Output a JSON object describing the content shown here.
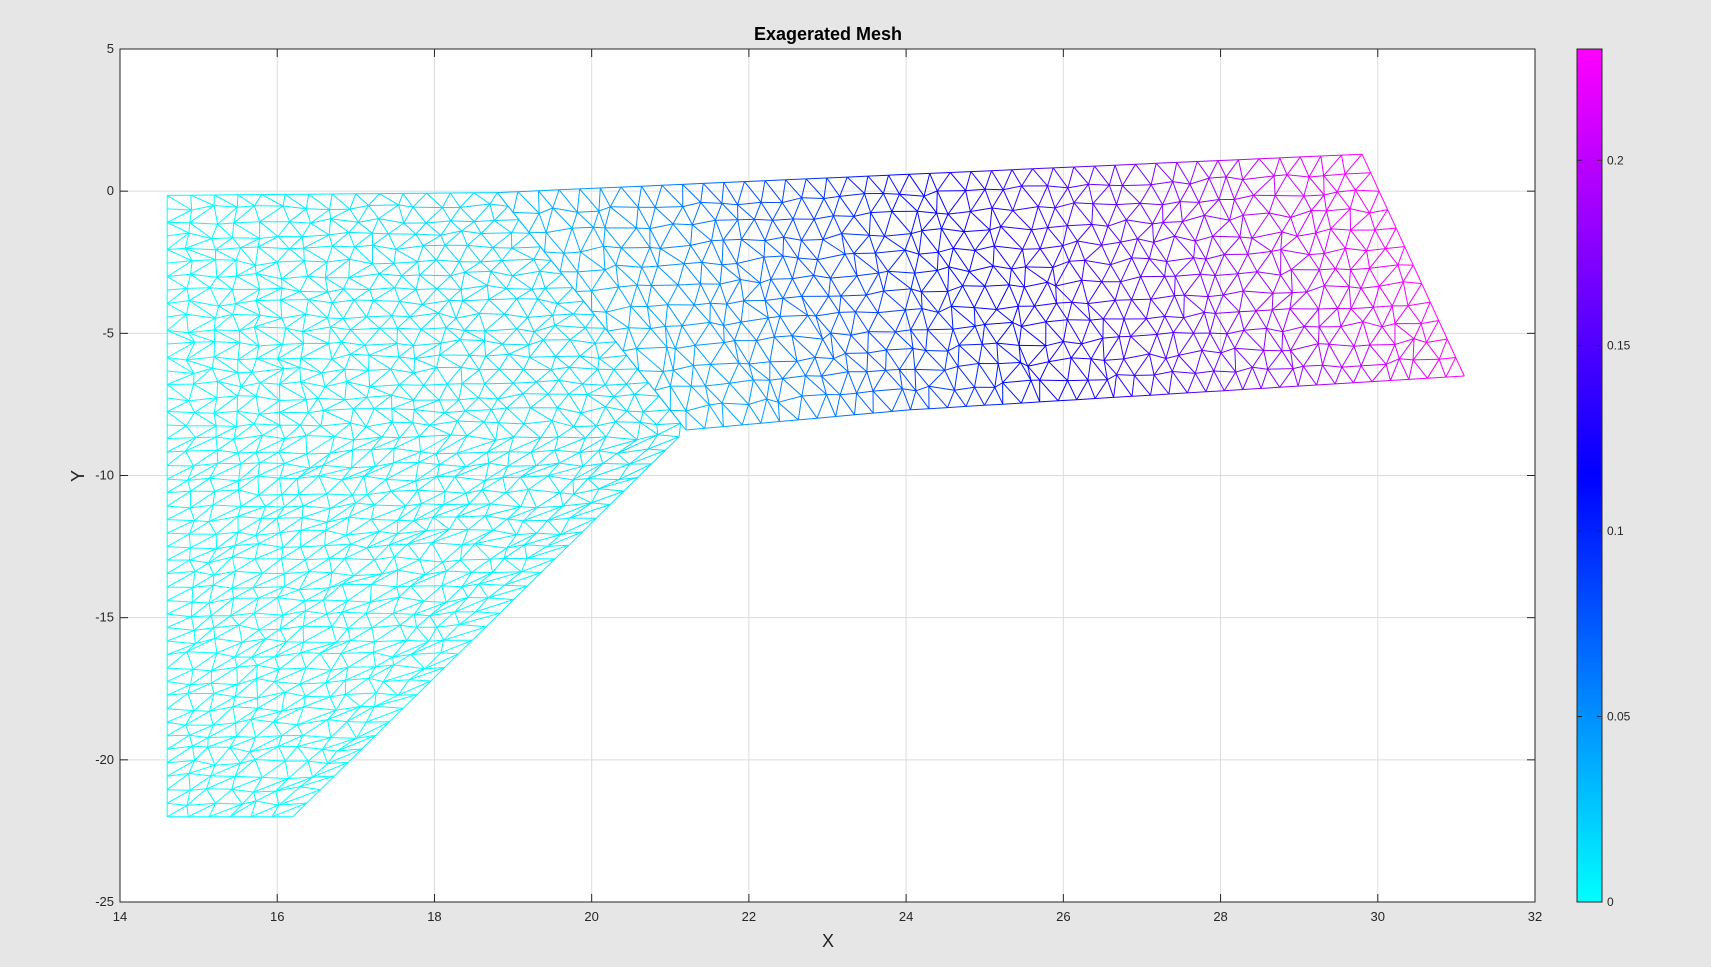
{
  "chart_data": {
    "type": "mesh",
    "title": "Exagerated Mesh",
    "xlabel": "X",
    "ylabel": "Y",
    "xlim": [
      14,
      32
    ],
    "ylim": [
      -25,
      5
    ],
    "xticks": [
      14,
      16,
      18,
      20,
      22,
      24,
      26,
      28,
      30,
      32
    ],
    "yticks": [
      -25,
      -20,
      -15,
      -10,
      -5,
      0,
      5
    ],
    "grid": true,
    "colorbar": {
      "position": "right",
      "range": [
        0,
        0.23
      ],
      "ticks": [
        0,
        0.05,
        0.1,
        0.15,
        0.2
      ],
      "colors": [
        "#00ffff",
        "#0000ff",
        "#ff00ff"
      ]
    },
    "regions": [
      {
        "name": "vertical-part",
        "outline": [
          [
            14.6,
            -0.15
          ],
          [
            18.8,
            -0.05
          ],
          [
            21.2,
            -8.4
          ],
          [
            16.2,
            -22
          ],
          [
            14.6,
            -22
          ]
        ],
        "rows": 46,
        "value_range": [
          0.0,
          0.03
        ]
      },
      {
        "name": "deflected-arm",
        "outline": [
          [
            18.8,
            -0.05
          ],
          [
            29.8,
            1.3
          ],
          [
            31.1,
            -6.5
          ],
          [
            24.0,
            -7.7
          ],
          [
            21.2,
            -8.4
          ]
        ],
        "rows": 12,
        "value_range": [
          0.03,
          0.23
        ]
      }
    ]
  }
}
